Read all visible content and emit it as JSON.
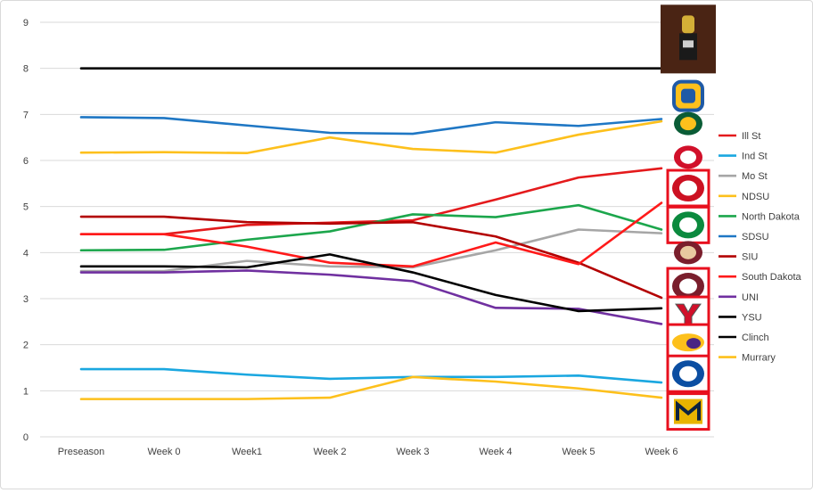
{
  "chart_data": {
    "type": "line",
    "title": "",
    "xlabel": "",
    "ylabel": "",
    "categories": [
      "Preseason",
      "Week 0",
      "Week1",
      "Week 2",
      "Week 3",
      "Week 4",
      "Week 5",
      "Week 6"
    ],
    "ylim": [
      0,
      9
    ],
    "yticks": [
      "0",
      "1",
      "2",
      "3",
      "4",
      "5",
      "6",
      "7",
      "8",
      "9"
    ],
    "grid": true,
    "legend_position": "right",
    "series": [
      {
        "name": "Ill St",
        "color": "#e41a1c",
        "values": [
          4.4,
          4.4,
          4.6,
          4.65,
          4.7,
          5.15,
          5.63,
          5.83
        ]
      },
      {
        "name": "Ind St",
        "color": "#1aa7e0",
        "values": [
          1.47,
          1.47,
          1.35,
          1.26,
          1.3,
          1.3,
          1.33,
          1.18
        ]
      },
      {
        "name": "Mo St",
        "color": "#a6a6a6",
        "values": [
          3.6,
          3.6,
          3.82,
          3.7,
          3.68,
          4.05,
          4.5,
          4.42
        ]
      },
      {
        "name": "NDSU",
        "color": "#fdc01c",
        "values": [
          6.17,
          6.18,
          6.16,
          6.5,
          6.25,
          6.17,
          6.56,
          6.85
        ]
      },
      {
        "name": "North Dakota",
        "color": "#1ca64c",
        "values": [
          4.05,
          4.06,
          4.28,
          4.46,
          4.83,
          4.77,
          5.03,
          4.5
        ]
      },
      {
        "name": "SDSU",
        "color": "#1f77c4",
        "values": [
          6.94,
          6.92,
          6.76,
          6.6,
          6.58,
          6.83,
          6.75,
          6.9
        ]
      },
      {
        "name": "SIU",
        "color": "#b30000",
        "values": [
          4.78,
          4.78,
          4.66,
          4.63,
          4.66,
          4.35,
          3.78,
          3.02
        ]
      },
      {
        "name": "South Dakota",
        "color": "#ff1a1a",
        "values": [
          4.4,
          4.4,
          4.13,
          3.78,
          3.7,
          4.22,
          3.75,
          5.08
        ]
      },
      {
        "name": "UNI",
        "color": "#7030a0",
        "values": [
          3.57,
          3.57,
          3.61,
          3.52,
          3.38,
          2.8,
          2.78,
          2.45
        ]
      },
      {
        "name": "YSU",
        "color": "#000000",
        "values": [
          3.7,
          3.7,
          3.68,
          3.96,
          3.57,
          3.08,
          2.73,
          2.79
        ]
      },
      {
        "name": "Clinch",
        "color": "#000000",
        "values": [
          8,
          8,
          8,
          8,
          8,
          8,
          8,
          8
        ]
      },
      {
        "name": "Murrary",
        "color": "#fdc01c",
        "values": [
          0.82,
          0.82,
          0.82,
          0.85,
          1.3,
          1.2,
          1.05,
          0.85
        ]
      }
    ],
    "logos": [
      {
        "icon": "trophy-icon",
        "week_index": 7,
        "value": 8.8,
        "boxed": false
      },
      {
        "icon": "sdsu-logo-icon",
        "week_index": 7,
        "value": 7.4,
        "boxed": false
      },
      {
        "icon": "ndsu-bison-logo-icon",
        "week_index": 7,
        "value": 6.8,
        "boxed": false
      },
      {
        "icon": "south-dakota-coyote-logo-icon",
        "week_index": 7,
        "value": 6.07,
        "boxed": false
      },
      {
        "icon": "illinois-state-redbird-logo-icon",
        "week_index": 7,
        "value": 5.4,
        "boxed": true
      },
      {
        "icon": "north-dakota-logo-icon",
        "week_index": 7,
        "value": 4.6,
        "boxed": true
      },
      {
        "icon": "missouri-state-bear-logo-icon",
        "week_index": 7,
        "value": 4.0,
        "boxed": false
      },
      {
        "icon": "siu-saluki-logo-icon",
        "week_index": 7,
        "value": 3.27,
        "boxed": true
      },
      {
        "icon": "youngstown-state-y-logo-icon",
        "week_index": 7,
        "value": 2.65,
        "boxed": true
      },
      {
        "icon": "uni-panther-logo-icon",
        "week_index": 7,
        "value": 2.05,
        "boxed": true
      },
      {
        "icon": "indiana-state-logo-icon",
        "week_index": 7,
        "value": 1.37,
        "boxed": true
      },
      {
        "icon": "murray-state-logo-icon",
        "week_index": 7,
        "value": 0.55,
        "boxed": true
      }
    ]
  }
}
